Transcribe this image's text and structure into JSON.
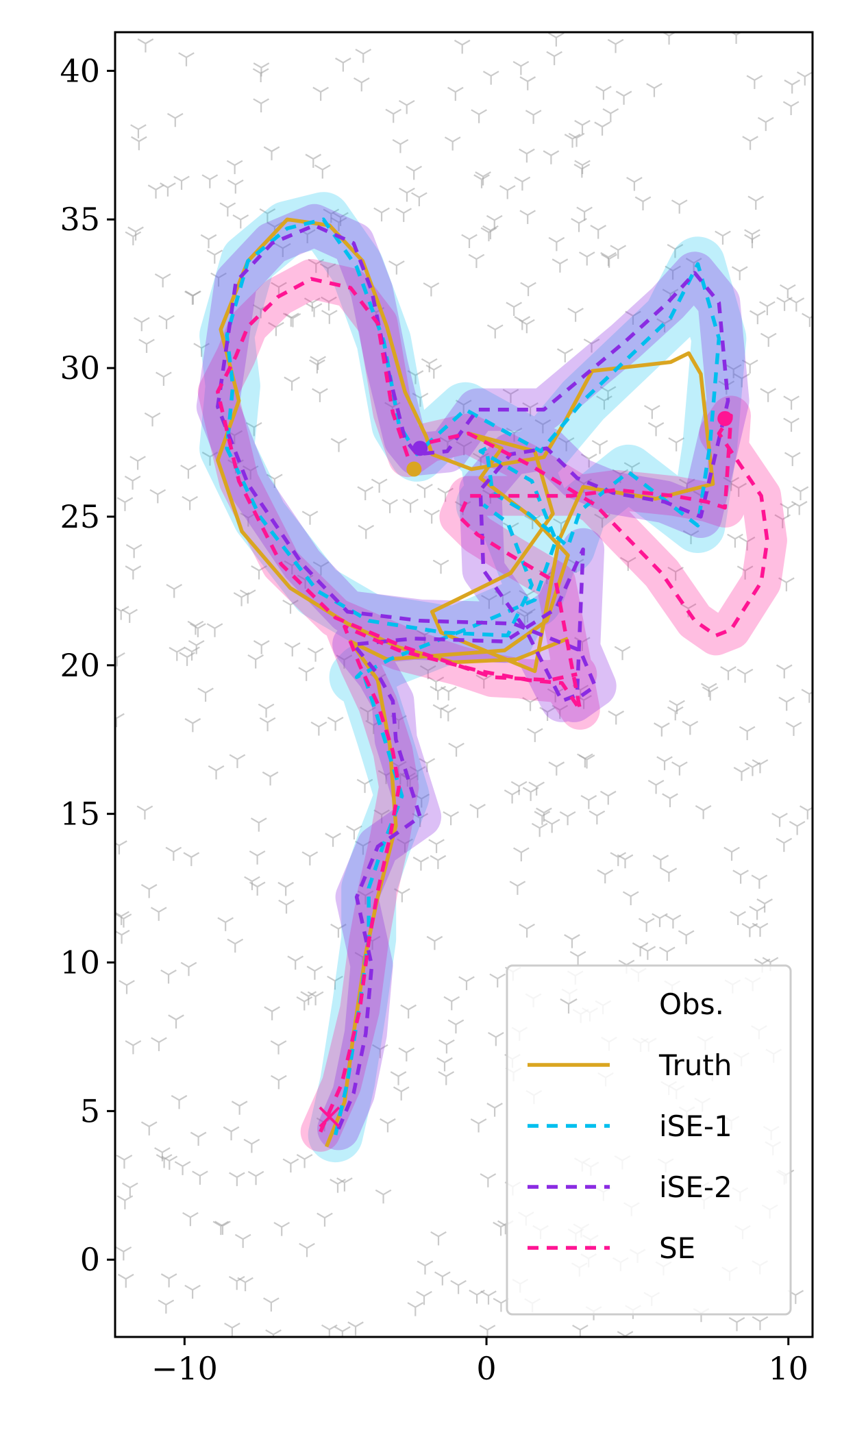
{
  "chart_data": {
    "type": "line",
    "title": "",
    "xlabel": "",
    "ylabel": "",
    "xlim": [
      -12.3,
      10.8
    ],
    "ylim": [
      -2.6,
      41.3
    ],
    "xticks": [
      -10,
      0,
      10
    ],
    "yticks": [
      0,
      5,
      10,
      15,
      20,
      25,
      30,
      35,
      40
    ],
    "xtick_labels": [
      "−10",
      "0",
      "10"
    ],
    "ytick_labels": [
      "0",
      "5",
      "10",
      "15",
      "20",
      "25",
      "30",
      "35",
      "40"
    ],
    "grid": false,
    "legend_position": "lower-right",
    "observations": {
      "name": "Obs.",
      "marker": "tri-down",
      "color": "#9e9e9e"
    },
    "series": [
      {
        "name": "Truth",
        "color": "#DAA520",
        "style": "solid",
        "x": [
          -5.3,
          -4.7,
          -4.4,
          -4.0,
          -3.6,
          -3.0,
          -3.2,
          -3.6,
          -4.5,
          -3.3,
          0.6,
          2.0,
          2.7,
          1.6,
          -0.2,
          0.5,
          -0.6,
          1.6,
          2.2,
          0.8,
          -1.8,
          -1.5,
          1.6,
          2.4,
          3.2,
          5.6,
          7.5,
          7.1,
          6.7,
          6.1,
          3.5,
          2.6,
          1.9,
          -0.5,
          -1.8,
          -2.0,
          -2.7,
          -3.3,
          -4.1,
          -5.2,
          -6.6,
          -7.9,
          -8.8,
          -8.2,
          -8.9,
          -8.1,
          -6.5,
          -4.6,
          -2.9,
          -1.1,
          1.0,
          2.7
        ],
        "y": [
          3.8,
          5.3,
          7.6,
          10.3,
          12.2,
          14.6,
          17.3,
          19.5,
          20.8,
          20.2,
          20.5,
          21.5,
          23.7,
          24.9,
          26.3,
          27.3,
          27.8,
          27.2,
          25.1,
          23.1,
          21.8,
          21.1,
          19.8,
          24.2,
          26.0,
          25.6,
          26.1,
          29.8,
          30.5,
          30.2,
          29.9,
          28.2,
          27.0,
          26.6,
          27.1,
          27.7,
          29.2,
          31.4,
          33.6,
          34.8,
          35.0,
          33.6,
          31.3,
          28.9,
          26.9,
          24.5,
          22.6,
          21.4,
          20.6,
          20.1,
          20.2,
          20.9
        ]
      },
      {
        "name": "iSE-1",
        "color": "#00BFEE",
        "style": "dashed",
        "x": [
          -5.0,
          -4.6,
          -4.2,
          -3.9,
          -3.9,
          -3.4,
          -2.8,
          -3.4,
          -4.1,
          -4.3,
          -3.2,
          -0.7,
          1.6,
          2.3,
          1.5,
          -0.2,
          0.0,
          0.2,
          1.4,
          2.7,
          3.1,
          4.7,
          7.0,
          7.4,
          7.7,
          7.0,
          6.1,
          3.2,
          1.8,
          -0.7,
          -1.9,
          -2.3,
          -2.9,
          -3.4,
          -4.3,
          -5.4,
          -6.6,
          -7.9,
          -8.6,
          -8.4,
          -8.6,
          -7.5,
          -5.6,
          -3.9,
          -1.4,
          0.7,
          1.5,
          0.7,
          -0.1
        ],
        "y": [
          4.2,
          6.0,
          8.6,
          10.8,
          12.5,
          14.0,
          15.6,
          17.6,
          19.8,
          19.6,
          20.2,
          21.2,
          22.2,
          24.2,
          26.2,
          27.2,
          27.3,
          25.8,
          25.1,
          24.0,
          25.2,
          26.5,
          24.7,
          27.4,
          31.0,
          33.5,
          31.7,
          28.9,
          27.2,
          28.6,
          27.5,
          27.1,
          28.1,
          30.9,
          33.4,
          35.0,
          34.7,
          33.6,
          31.1,
          29.4,
          27.3,
          25.0,
          22.5,
          21.5,
          21.1,
          21.0,
          22.7,
          24.8,
          25.4
        ]
      },
      {
        "name": "iSE-2",
        "color": "#8A2BE2",
        "style": "dashed",
        "x": [
          -4.9,
          -4.4,
          -4.0,
          -3.8,
          -4.3,
          -3.6,
          -2.2,
          -3.0,
          -3.1,
          -3.6,
          -4.4,
          -2.4,
          0.6,
          2.3,
          3.2,
          3.0,
          2.5,
          1.3,
          -0.1,
          -0.2,
          0.8,
          2.0,
          3.0,
          4.2,
          5.9,
          7.1,
          8.0,
          7.7,
          6.9,
          6.0,
          4.6,
          1.9,
          -0.3,
          -1.3,
          -2.3,
          -2.7,
          -3.3,
          -3.8,
          -4.4,
          -5.7,
          -7.1,
          -8.3,
          -8.6,
          -8.9,
          -7.9,
          -6.1,
          -4.6,
          -2.2,
          0.9,
          3.1,
          3.6,
          2.9
        ],
        "y": [
          4.4,
          5.6,
          7.6,
          9.9,
          12.2,
          13.9,
          14.9,
          17.5,
          18.8,
          19.7,
          20.7,
          20.9,
          20.8,
          21.9,
          23.9,
          19.0,
          18.8,
          21.2,
          23.2,
          25.9,
          27.1,
          27.3,
          26.3,
          25.8,
          25.5,
          25.0,
          28.9,
          32.2,
          33.2,
          32.2,
          30.9,
          28.6,
          28.6,
          27.2,
          27.1,
          27.6,
          30.1,
          32.6,
          34.2,
          34.8,
          34.2,
          32.9,
          30.8,
          28.7,
          26.1,
          23.4,
          21.8,
          21.5,
          21.4,
          20.5,
          19.3,
          18.8
        ]
      },
      {
        "name": "SE",
        "color": "#FF1493",
        "style": "dashed",
        "x": [
          -5.5,
          -4.8,
          -4.2,
          -3.9,
          -3.6,
          -3.2,
          -2.9,
          -3.1,
          -3.6,
          -4.2,
          -4.7,
          -2.9,
          -0.2,
          1.4,
          2.5,
          3.1,
          2.3,
          0.8,
          -0.3,
          -0.9,
          -0.6,
          0.9,
          2.8,
          4.3,
          6.2,
          7.3,
          7.9,
          8.1,
          7.7,
          9.1,
          9.3,
          9.1,
          8.1,
          7.6,
          6.9,
          5.8,
          3.6,
          1.5,
          -0.6,
          -1.9,
          -2.6,
          -3.1,
          -3.6,
          -4.5,
          -5.8,
          -6.9,
          -7.9,
          -8.3,
          -8.9,
          -8.2,
          -6.8,
          -5.0,
          -2.7,
          0.2,
          2.1,
          3.0
        ],
        "y": [
          4.3,
          5.9,
          8.4,
          10.7,
          12.4,
          14.2,
          15.9,
          17.1,
          18.7,
          20.0,
          21.3,
          20.5,
          19.8,
          19.5,
          19.4,
          18.5,
          22.8,
          23.7,
          24.4,
          25.0,
          25.7,
          25.7,
          25.7,
          25.9,
          25.7,
          25.5,
          25.3,
          28.4,
          27.8,
          25.7,
          24.2,
          22.8,
          21.2,
          21.0,
          21.5,
          23.1,
          25.4,
          26.7,
          27.8,
          27.5,
          27.0,
          28.5,
          31.5,
          32.7,
          33.0,
          32.4,
          31.4,
          30.4,
          29.2,
          26.2,
          23.4,
          21.6,
          20.6,
          19.6,
          19.5,
          19.7
        ]
      }
    ],
    "markers": [
      {
        "series": "Truth",
        "type": "x",
        "x": -5.2,
        "y": 4.8,
        "color": "#FF1493"
      },
      {
        "series": "Truth",
        "type": "dot",
        "x": -2.4,
        "y": 26.6,
        "color": "#DAA520"
      },
      {
        "series": "iSE-2",
        "type": "dot",
        "x": -2.2,
        "y": 27.3,
        "color": "#8A2BE2"
      },
      {
        "series": "SE",
        "type": "dot",
        "x": 7.9,
        "y": 28.3,
        "color": "#FF1493"
      }
    ]
  }
}
